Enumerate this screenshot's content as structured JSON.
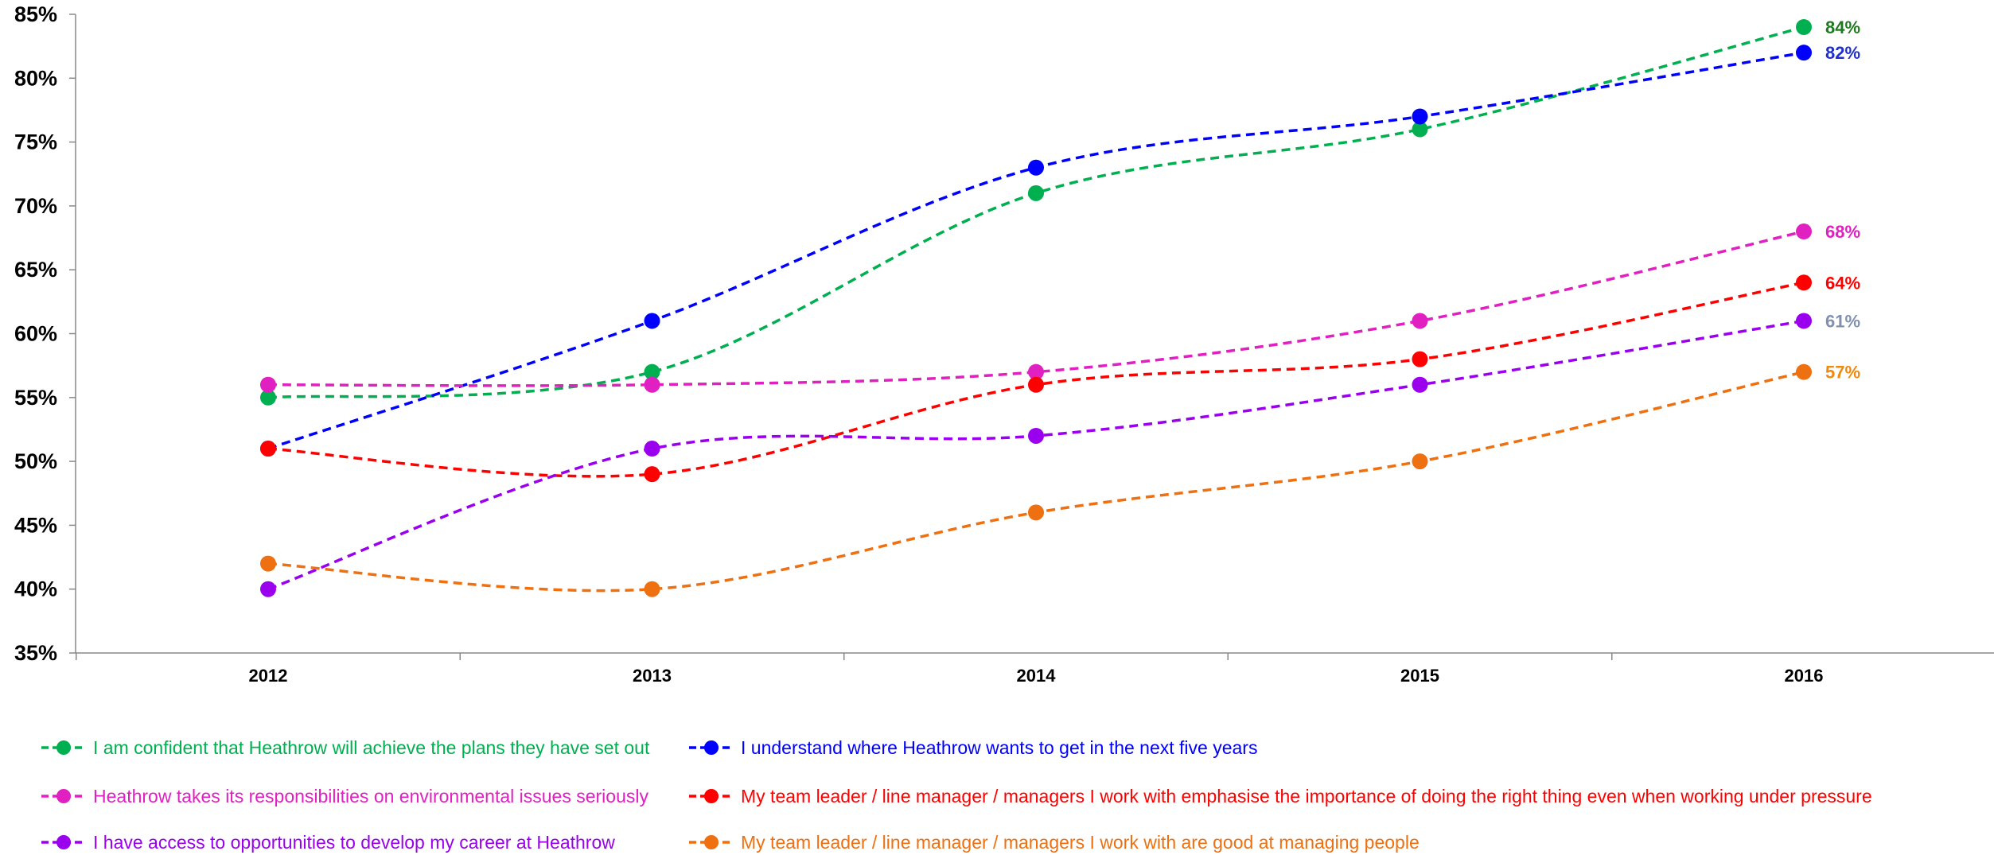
{
  "chart_data": {
    "type": "line",
    "x": [
      "2012",
      "2013",
      "2014",
      "2015",
      "2016"
    ],
    "ylim": [
      35,
      85
    ],
    "y_ticks": [
      "35%",
      "40%",
      "45%",
      "50%",
      "55%",
      "60%",
      "65%",
      "70%",
      "75%",
      "80%",
      "85%"
    ],
    "grid": false,
    "line_style": "dashed-smooth",
    "legend_position": "bottom",
    "series": [
      {
        "name": "I am confident that Heathrow will achieve the plans they have set out",
        "color": "#00b050",
        "values": [
          55,
          57,
          71,
          76,
          84
        ],
        "end_label": "84%",
        "end_label_color": "#1f7a1f"
      },
      {
        "name": "I understand where Heathrow wants to get in the next five years",
        "color": "#0000ff",
        "values": [
          51,
          61,
          73,
          77,
          82
        ],
        "end_label": "82%",
        "end_label_color": "#1f2fcc"
      },
      {
        "name": "Heathrow takes its responsibilities on environmental issues seriously",
        "color": "#e020c0",
        "values": [
          56,
          56,
          57,
          61,
          68
        ],
        "end_label": "68%",
        "end_label_color": "#e020c0"
      },
      {
        "name": "My team leader / line manager / managers I work with emphasise the importance of doing the right thing even when working under pressure",
        "color": "#ff0000",
        "values": [
          51,
          49,
          56,
          58,
          64
        ],
        "end_label": "64%",
        "end_label_color": "#ff0000"
      },
      {
        "name": "I have access to opportunities to develop my career at Heathrow",
        "color": "#9a00ee",
        "values": [
          40,
          51,
          52,
          56,
          61
        ],
        "end_label": "61%",
        "end_label_color": "#8090b0"
      },
      {
        "name": "My team leader / line manager / managers I work with are good at managing people",
        "color": "#ee7010",
        "values": [
          42,
          40,
          46,
          50,
          57
        ],
        "end_label": "57%",
        "end_label_color": "#ee8a10"
      }
    ]
  }
}
